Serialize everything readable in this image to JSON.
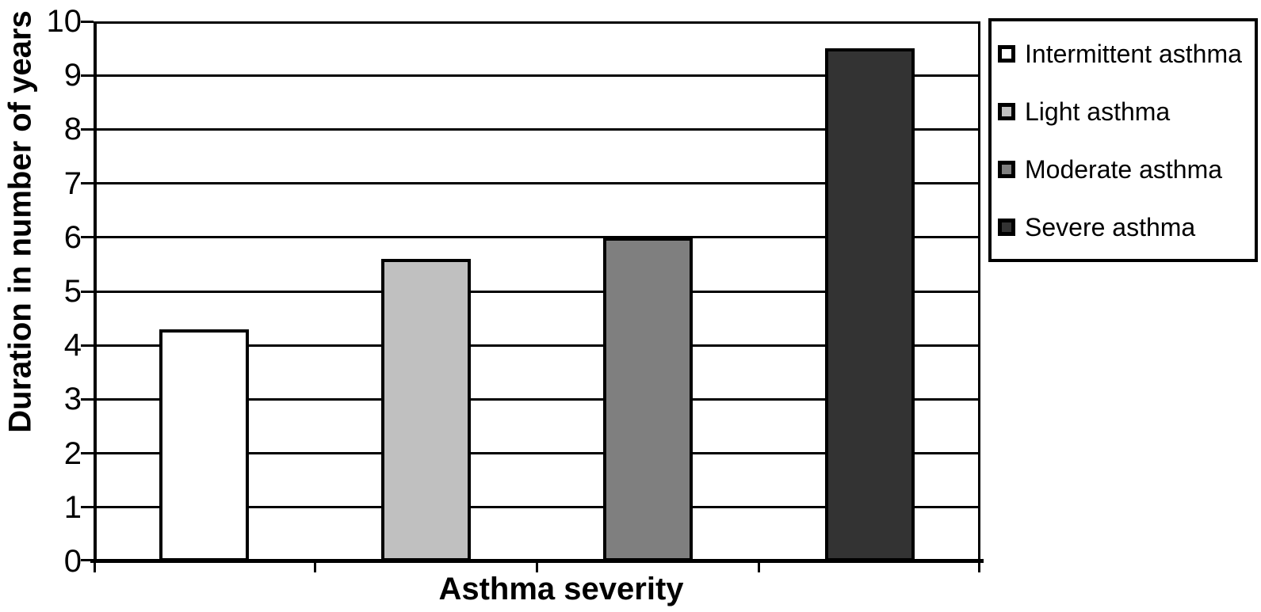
{
  "chart_data": {
    "type": "bar",
    "title": "",
    "xlabel": "Asthma severity",
    "ylabel": "Duration in number of years",
    "categories": [
      "Intermittent asthma",
      "Light asthma",
      "Moderate asthma",
      "Severe asthma"
    ],
    "values": [
      4.3,
      5.6,
      6.0,
      9.5
    ],
    "bar_colors": [
      "#ffffff",
      "#c0c0c0",
      "#7f7f7f",
      "#333333"
    ],
    "ylim": [
      0,
      10
    ],
    "yticks": [
      0,
      1,
      2,
      3,
      4,
      5,
      6,
      7,
      8,
      9,
      10
    ],
    "grid": "horizontal",
    "grid_color": "#000000",
    "background_color": "#ffffff",
    "legend_position": "right",
    "legend": [
      {
        "label": "Intermittent asthma",
        "color": "#ffffff"
      },
      {
        "label": "Light asthma",
        "color": "#c0c0c0"
      },
      {
        "label": "Moderate asthma",
        "color": "#7f7f7f"
      },
      {
        "label": "Severe asthma",
        "color": "#333333"
      }
    ]
  }
}
